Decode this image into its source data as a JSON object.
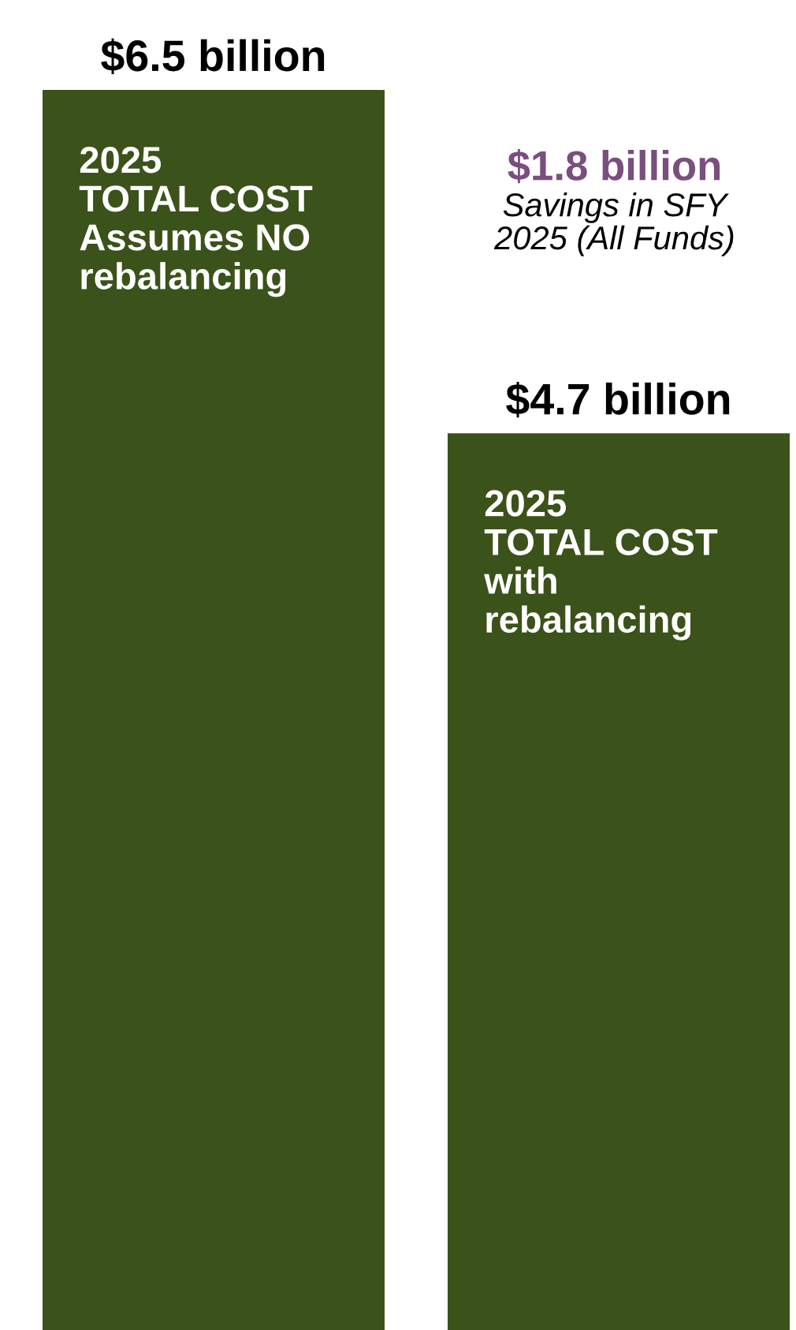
{
  "chart_data": {
    "type": "bar",
    "categories": [
      "2025\nTOTAL COST\nAssumes NO\nrebalancing",
      "2025\nTOTAL COST\nwith\nrebalancing"
    ],
    "values": [
      6.5,
      4.7
    ],
    "value_labels": [
      "$6.5 billion",
      "$4.7 billion"
    ],
    "color": "#3b521a",
    "annotations": [
      "$1.8 billion",
      "Savings in SFY\n2025 (All Funds)"
    ],
    "tick_labels": false,
    "grid": false,
    "legend": false
  }
}
